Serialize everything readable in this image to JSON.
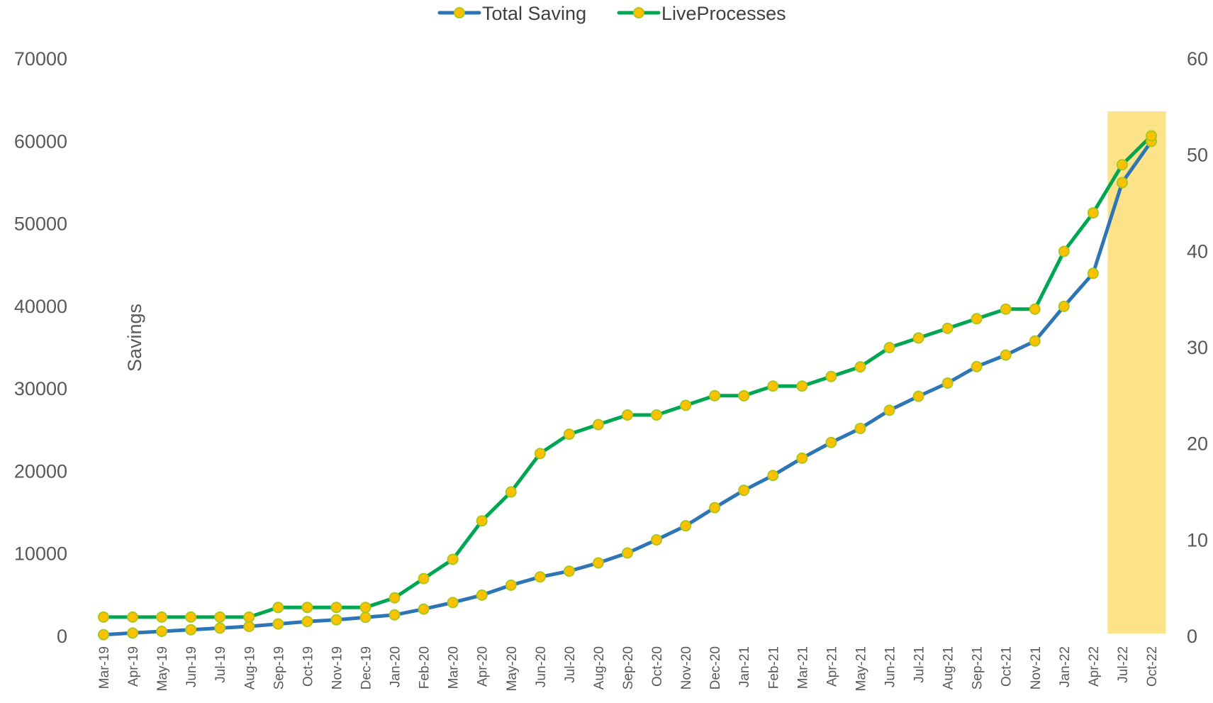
{
  "chart_data": {
    "type": "line",
    "title": "",
    "xlabel": "",
    "ylabel": "Savings",
    "y2label": "",
    "categories": [
      "Mar-19",
      "Apr-19",
      "May-19",
      "Jun-19",
      "Jul-19",
      "Aug-19",
      "Sep-19",
      "Oct-19",
      "Nov-19",
      "Dec-19",
      "Jan-20",
      "Feb-20",
      "Mar-20",
      "Apr-20",
      "May-20",
      "Jun-20",
      "Jul-20",
      "Aug-20",
      "Sep-20",
      "Oct-20",
      "Nov-20",
      "Dec-20",
      "Jan-21",
      "Feb-21",
      "Mar-21",
      "Apr-21",
      "May-21",
      "Jun-21",
      "Jul-21",
      "Aug-21",
      "Sep-21",
      "Oct-21",
      "Nov-21",
      "Jan-22",
      "Apr-22",
      "Jul-22",
      "Oct-22"
    ],
    "ylim": [
      0,
      70000
    ],
    "yticks": [
      "0",
      "10000",
      "20000",
      "30000",
      "40000",
      "50000",
      "60000",
      "70000"
    ],
    "y2lim": [
      0,
      60
    ],
    "y2ticks": [
      "0",
      "10",
      "20",
      "30",
      "40",
      "50",
      "60"
    ],
    "series": [
      {
        "name": "Total Saving",
        "axis": "left",
        "color": "#2e75b6",
        "values": [
          200,
          400,
          600,
          800,
          1000,
          1200,
          1500,
          1800,
          2000,
          2300,
          2600,
          3300,
          4100,
          5000,
          6200,
          7200,
          7900,
          8900,
          10100,
          11700,
          13400,
          15600,
          17700,
          19500,
          21600,
          23500,
          25200,
          27400,
          29100,
          30700,
          32700,
          34100,
          35800,
          40000,
          44000,
          55000,
          60000
        ]
      },
      {
        "name": "LiveProcesses",
        "axis": "right",
        "color": "#00a651",
        "values": [
          2,
          2,
          2,
          2,
          2,
          2,
          3,
          3,
          3,
          3,
          4,
          6,
          8,
          12,
          15,
          19,
          21,
          22,
          23,
          23,
          24,
          25,
          25,
          26,
          26,
          27,
          28,
          30,
          31,
          32,
          33,
          34,
          34,
          40,
          44,
          49,
          52
        ]
      }
    ],
    "marker_color": "#ffc000",
    "marker_edge_color": "#a8c81c",
    "highlight": {
      "from_category": "Jul-22",
      "to_category": "Oct-22",
      "color": "#fce38a"
    },
    "legend": {
      "placement": "top-center"
    },
    "grid": false
  }
}
